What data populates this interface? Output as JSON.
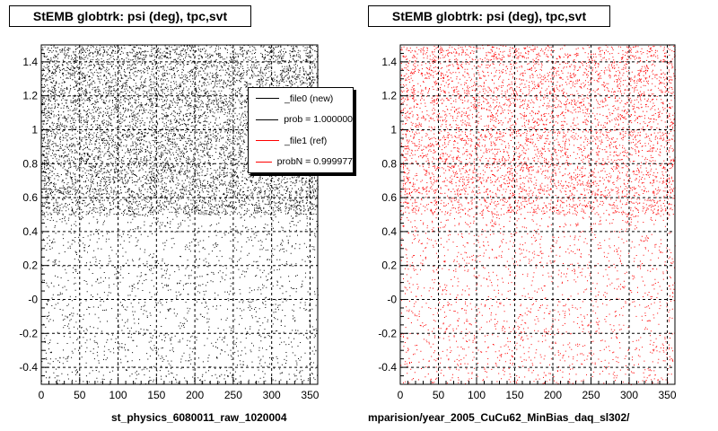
{
  "chart_data": [
    {
      "type": "scatter",
      "title": "StEMB globtrk: psi (deg), tpc,svt",
      "xlim": [
        0,
        360
      ],
      "ylim": [
        -0.5,
        1.5
      ],
      "x_ticks": [
        0,
        50,
        100,
        150,
        200,
        250,
        300,
        350
      ],
      "y_ticks": [
        -0.4,
        -0.2,
        0,
        0.2,
        0.4,
        0.6,
        0.8,
        1,
        1.2,
        1.4
      ],
      "y_tick_labels": [
        "-0.4",
        "-0.2",
        "-0",
        "0.2",
        "0.4",
        "0.6",
        "0.8",
        "1",
        "1.2",
        "1.4"
      ],
      "grid": true,
      "series": [
        {
          "color": "#000000",
          "density_bands": [
            {
              "y_range": [
                0.5,
                1.5
              ],
              "density": "high"
            },
            {
              "y_range": [
                -0.5,
                0.5
              ],
              "density": "low"
            }
          ]
        }
      ],
      "footer": "st_physics_6080011_raw_1020004"
    },
    {
      "type": "scatter",
      "title": "StEMB globtrk: psi (deg), tpc,svt",
      "xlim": [
        0,
        360
      ],
      "ylim": [
        -0.5,
        1.5
      ],
      "x_ticks": [
        0,
        50,
        100,
        150,
        200,
        250,
        300,
        350
      ],
      "y_ticks": [
        -0.4,
        -0.2,
        0,
        0.2,
        0.4,
        0.6,
        0.8,
        1,
        1.2,
        1.4
      ],
      "y_tick_labels": [
        "-0.4",
        "-0.2",
        "-0",
        "0.2",
        "0.4",
        "0.6",
        "0.8",
        "1",
        "1.2",
        "1.4"
      ],
      "grid": true,
      "series": [
        {
          "color": "#ff0000",
          "density_bands": [
            {
              "y_range": [
                0.5,
                1.5
              ],
              "density": "high"
            },
            {
              "y_range": [
                -0.5,
                0.5
              ],
              "density": "low"
            }
          ]
        }
      ],
      "footer": "mparision/year_2005_CuCu62_MinBias_daq_sl302/"
    }
  ],
  "legend": {
    "placement": "top-right of left panel",
    "entries": [
      {
        "label": "_file0 (new)",
        "color": "#000000"
      },
      {
        "label": "prob = 1.000000",
        "color": "#000000"
      },
      {
        "label": "_file1 (ref)",
        "color": "#ff0000"
      },
      {
        "label": "probN = 0.999977",
        "color": "#ff0000"
      }
    ]
  }
}
